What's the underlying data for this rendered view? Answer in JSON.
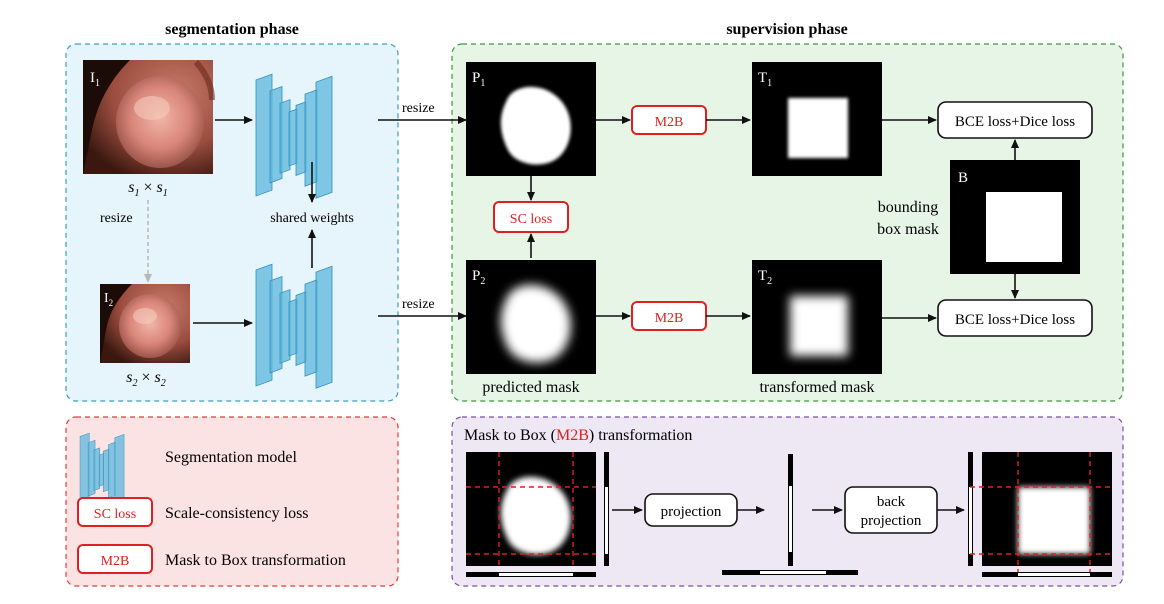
{
  "phases": {
    "segmentation": "segmentation phase",
    "supervision": "supervision phase"
  },
  "inputs": {
    "i1": "I",
    "i1_sub": "1",
    "i2": "I",
    "i2_sub": "2",
    "s1": "s",
    "s1_sub": "1",
    "s2": "s",
    "s2_sub": "2",
    "times": "×"
  },
  "labels": {
    "resize": "resize",
    "shared_weights": "shared weights",
    "predicted_mask": "predicted mask",
    "transformed_mask": "transformed mask",
    "bounding_box_mask_line1": "bounding",
    "bounding_box_mask_line2": "box mask"
  },
  "masks": {
    "p": "P",
    "t": "T",
    "b": "B",
    "sub1": "1",
    "sub2": "2"
  },
  "ops": {
    "m2b": "M2B",
    "sc_loss": "SC loss",
    "bce_dice": "BCE loss+Dice loss",
    "projection": "projection",
    "back_projection_line1": "back",
    "back_projection_line2": "projection"
  },
  "legend": {
    "model": "Segmentation model",
    "sc_chip": "SC loss",
    "sc_desc": "Scale-consistency loss",
    "m2b_chip": "M2B",
    "m2b_desc": "Mask to Box transformation"
  },
  "m2b_panel": {
    "title_prefix": "Mask to Box (",
    "title_highlight": "M2B",
    "title_suffix": ") transformation"
  },
  "colors": {
    "seg_bg": "#e6f4fb",
    "seg_border": "#3a9fc8",
    "sup_bg": "#e7f5e6",
    "sup_border": "#3a9a3a",
    "legend_bg": "#fbe3e3",
    "legend_border": "#e23b3b",
    "m2b_bg": "#ede8f3",
    "m2b_border": "#7b4fa8",
    "accent_red": "#e02020",
    "model_blue": "#5cb7de"
  }
}
